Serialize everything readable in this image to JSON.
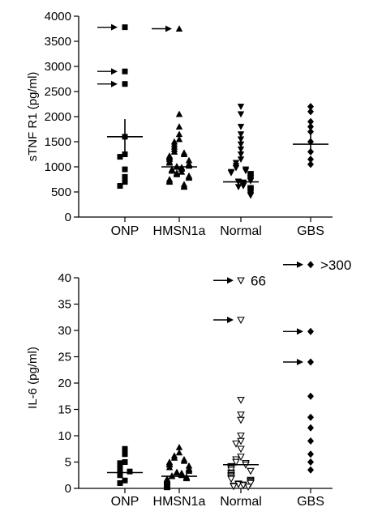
{
  "chart_data": [
    {
      "type": "scatter",
      "title": "",
      "xlabel": "",
      "ylabel": "sTNF R1 (pg/ml)",
      "ylim": [
        0,
        4000
      ],
      "yticks": [
        0,
        500,
        1000,
        1500,
        2000,
        2500,
        3000,
        3500,
        4000
      ],
      "categories": [
        "ONP",
        "HMSN1a",
        "Normal",
        "GBS"
      ],
      "series": [
        {
          "category": "ONP",
          "marker": "square",
          "filled": true,
          "median": 1600,
          "error_bar": [
            1200,
            1950
          ],
          "values": [
            3780,
            2900,
            2650,
            1600,
            1250,
            1200,
            950,
            800,
            700,
            620
          ],
          "arrow_values": [
            3780,
            2900,
            2650
          ]
        },
        {
          "category": "HMSN1a",
          "marker": "triangle-up",
          "filled": true,
          "median": 1000,
          "values": [
            3750,
            2050,
            1800,
            1650,
            1550,
            1500,
            1450,
            1400,
            1350,
            1300,
            1280,
            1250,
            1220,
            1200,
            1180,
            1150,
            1130,
            1100,
            1080,
            1060,
            1040,
            1020,
            1010,
            1000,
            990,
            980,
            960,
            950,
            940,
            920,
            900,
            880,
            860,
            850,
            820,
            800,
            780,
            750,
            720,
            700,
            650,
            620,
            600
          ],
          "arrow_values": [
            3750
          ]
        },
        {
          "category": "Normal",
          "marker": "triangle-down",
          "filled": true,
          "median": 700,
          "values": [
            2200,
            2050,
            1800,
            1650,
            1550,
            1450,
            1350,
            1250,
            1150,
            1080,
            1020,
            980,
            950,
            920,
            900,
            880,
            860,
            840,
            820,
            800,
            780,
            760,
            740,
            720,
            710,
            700,
            690,
            680,
            660,
            640,
            620,
            600,
            580,
            560,
            540,
            520,
            500,
            480,
            450,
            430
          ],
          "arrow_values": []
        },
        {
          "category": "GBS",
          "marker": "diamond",
          "filled": true,
          "median": 1450,
          "error_bar": [
            1300,
            1700
          ],
          "values": [
            2200,
            2100,
            1900,
            1800,
            1700,
            1500,
            1300,
            1150,
            1050
          ],
          "arrow_values": []
        }
      ]
    },
    {
      "type": "scatter",
      "title": "",
      "xlabel": "",
      "ylabel": "IL-6 (pg/ml)",
      "ylim": [
        0,
        42
      ],
      "yticks": [
        0,
        5,
        10,
        15,
        20,
        25,
        30,
        35,
        40
      ],
      "categories": [
        "ONP",
        "HMSN1a",
        "Normal",
        "GBS"
      ],
      "series": [
        {
          "category": "ONP",
          "marker": "square",
          "filled": true,
          "median": 3.0,
          "values": [
            7.5,
            6.5,
            5.0,
            4.8,
            4.0,
            3.5,
            3.2,
            2.5,
            1.5,
            1.0
          ],
          "arrow_values": []
        },
        {
          "category": "HMSN1a",
          "marker": "triangle-up",
          "filled": true,
          "median": 2.3,
          "values": [
            7.8,
            6.8,
            6.2,
            5.8,
            5.5,
            5.2,
            5.0,
            4.7,
            4.5,
            4.3,
            4.0,
            3.8,
            3.6,
            3.5,
            3.3,
            3.1,
            3.0,
            2.9,
            2.7,
            2.6,
            2.5,
            2.4,
            2.3,
            2.2,
            2.1,
            2.0,
            1.9,
            1.8,
            1.7,
            1.6,
            1.5,
            1.4,
            1.3,
            1.2,
            1.1,
            1.0,
            0.9,
            0.8,
            0.7,
            0.6,
            0.5,
            0.4,
            0.3,
            0.2
          ],
          "arrow_values": []
        },
        {
          "category": "Normal",
          "marker": "triangle-down",
          "filled": false,
          "median": 4.5,
          "values": [
            39.5,
            32.0,
            16.8,
            14.0,
            13.0,
            10.0,
            9.0,
            8.5,
            7.5,
            6.0,
            5.5,
            5.0,
            4.8,
            4.5,
            4.2,
            4.0,
            3.8,
            3.5,
            3.3,
            3.0,
            2.8,
            2.5,
            2.3,
            2.0,
            1.8,
            1.6,
            1.4,
            1.2,
            1.0,
            0.9,
            0.8,
            0.7,
            0.6,
            0.5,
            0.4,
            0.3
          ],
          "arrow_values": [
            39.5,
            32.0
          ]
        },
        {
          "category": "GBS",
          "marker": "diamond",
          "filled": true,
          "median": null,
          "values": [
            42.5,
            29.8,
            24.0,
            17.5,
            13.5,
            11.5,
            9.0,
            6.5,
            5.0,
            3.5
          ],
          "arrow_values": [
            42.5,
            29.8,
            24.0
          ]
        }
      ],
      "annotations": [
        {
          "category": "Normal",
          "y": 39.5,
          "text": "66"
        },
        {
          "category": "GBS",
          "y": 42.5,
          "text": ">300"
        }
      ]
    }
  ]
}
